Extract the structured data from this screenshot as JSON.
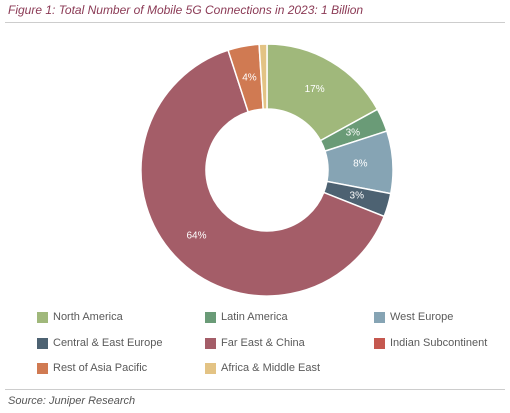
{
  "figure": {
    "title": "Figure 1: Total Number of Mobile 5G Connections in 2023: 1 Billion",
    "source": "Source: Juniper Research"
  },
  "chart_data": {
    "type": "pie",
    "variant": "donut",
    "title": "Figure 1: Total Number of Mobile 5G Connections in 2023: 1 Billion",
    "unit": "%",
    "legend_position": "bottom",
    "series": [
      {
        "name": "North America",
        "value": 17,
        "label": "17%",
        "color": "#a0b87b"
      },
      {
        "name": "Latin America",
        "value": 3,
        "label": "3%",
        "color": "#6a9b77"
      },
      {
        "name": "West Europe",
        "value": 8,
        "label": "8%",
        "color": "#86a4b4"
      },
      {
        "name": "Central & East Europe",
        "value": 3,
        "label": "3%",
        "color": "#4d6272"
      },
      {
        "name": "Far East & China",
        "value": 64,
        "label": "64%",
        "color": "#a45d68"
      },
      {
        "name": "Indian Subcontinent",
        "value": 0,
        "label": "",
        "color": "#c5584f"
      },
      {
        "name": "Rest of Asia Pacific",
        "value": 4,
        "label": "4%",
        "color": "#d07a52"
      },
      {
        "name": "Africa & Middle East",
        "value": 1,
        "label": "",
        "color": "#e3c384"
      }
    ]
  }
}
